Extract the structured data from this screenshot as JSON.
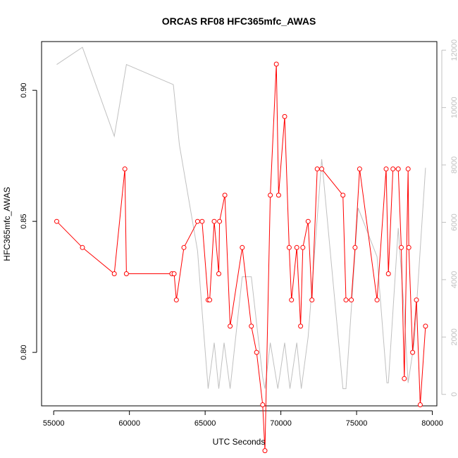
{
  "chart_data": {
    "type": "line",
    "title": "ORCAS RF08 HFC365mfc_AWAS",
    "xlabel": "UTC Seconds",
    "ylabel": "HFC365mfc_AWAS",
    "xlim": [
      54200,
      80300
    ],
    "ylim": [
      0.7796,
      0.9186
    ],
    "y2lim": [
      -400,
      12300
    ],
    "x_ticks": [
      55000,
      60000,
      65000,
      70000,
      75000,
      80000
    ],
    "y_ticks": [
      0.8,
      0.85,
      0.9
    ],
    "y_tick_labels": [
      "0.80",
      "0.85",
      "0.90"
    ],
    "y2_ticks": [
      0,
      2000,
      4000,
      6000,
      8000,
      10000,
      12000
    ],
    "colors": {
      "primary": "#ff0000",
      "secondary": "#c0c0c0",
      "axis": "#000000",
      "right_axis": "#c0c0c0"
    },
    "series": [
      {
        "axis": "left",
        "marker": "open-circle",
        "points": [
          [
            55200,
            0.85
          ],
          [
            56900,
            0.84
          ],
          [
            59000,
            0.83
          ],
          [
            59700,
            0.87
          ],
          [
            59800,
            0.83
          ],
          [
            62800,
            0.83
          ],
          [
            62950,
            0.83
          ],
          [
            63100,
            0.82
          ],
          [
            63600,
            0.84
          ],
          [
            64500,
            0.85
          ],
          [
            64800,
            0.85
          ],
          [
            65200,
            0.82
          ],
          [
            65300,
            0.82
          ],
          [
            65600,
            0.85
          ],
          [
            65900,
            0.83
          ],
          [
            65950,
            0.85
          ],
          [
            66300,
            0.86
          ],
          [
            66650,
            0.81
          ],
          [
            67450,
            0.84
          ],
          [
            68050,
            0.81
          ],
          [
            68400,
            0.8
          ],
          [
            68800,
            0.78
          ],
          [
            68950,
            0.7625
          ],
          [
            69300,
            0.86
          ],
          [
            69700,
            0.91
          ],
          [
            69850,
            0.86
          ],
          [
            70250,
            0.89
          ],
          [
            70550,
            0.84
          ],
          [
            70700,
            0.82
          ],
          [
            71050,
            0.84
          ],
          [
            71300,
            0.81
          ],
          [
            71450,
            0.84
          ],
          [
            71800,
            0.85
          ],
          [
            72050,
            0.82
          ],
          [
            72400,
            0.87
          ],
          [
            72700,
            0.87
          ],
          [
            74100,
            0.86
          ],
          [
            74300,
            0.82
          ],
          [
            74650,
            0.82
          ],
          [
            74900,
            0.84
          ],
          [
            75200,
            0.87
          ],
          [
            76350,
            0.82
          ],
          [
            76950,
            0.87
          ],
          [
            77100,
            0.83
          ],
          [
            77400,
            0.87
          ],
          [
            77750,
            0.87
          ],
          [
            77950,
            0.84
          ],
          [
            78150,
            0.79
          ],
          [
            78400,
            0.87
          ],
          [
            78450,
            0.84
          ],
          [
            78700,
            0.8
          ],
          [
            78950,
            0.82
          ],
          [
            79200,
            0.78
          ],
          [
            79550,
            0.81
          ]
        ]
      },
      {
        "axis": "right",
        "points": [
          [
            55200,
            11500
          ],
          [
            56900,
            12100
          ],
          [
            59000,
            9000
          ],
          [
            59800,
            11500
          ],
          [
            62900,
            10800
          ],
          [
            63300,
            8700
          ],
          [
            64500,
            5000
          ],
          [
            64900,
            2200
          ],
          [
            65200,
            200
          ],
          [
            65600,
            1800
          ],
          [
            65900,
            200
          ],
          [
            66250,
            1800
          ],
          [
            66650,
            200
          ],
          [
            67450,
            4100
          ],
          [
            68050,
            4100
          ],
          [
            68800,
            600
          ],
          [
            68950,
            200
          ],
          [
            69300,
            1800
          ],
          [
            69800,
            200
          ],
          [
            70250,
            1800
          ],
          [
            70600,
            200
          ],
          [
            71050,
            1800
          ],
          [
            71350,
            200
          ],
          [
            71800,
            2000
          ],
          [
            72700,
            8200
          ],
          [
            74100,
            200
          ],
          [
            74300,
            200
          ],
          [
            75100,
            6500
          ],
          [
            76350,
            4800
          ],
          [
            77000,
            400
          ],
          [
            77100,
            400
          ],
          [
            77750,
            5800
          ],
          [
            78150,
            2800
          ],
          [
            78400,
            400
          ],
          [
            78800,
            1800
          ],
          [
            79550,
            7900
          ]
        ]
      }
    ]
  }
}
